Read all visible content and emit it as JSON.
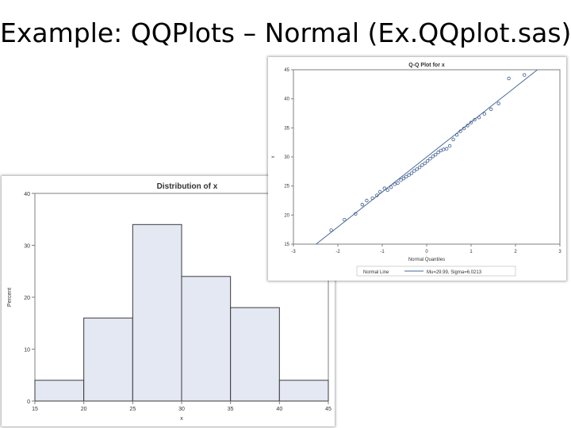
{
  "slide": {
    "title": "Example: QQPlots – Normal (Ex.QQplot.sas)"
  },
  "colors": {
    "bar_fill": "#e4e8f3",
    "bar_stroke": "#3a3a3a",
    "marker": "#3f5f8f",
    "ref_line": "#4a6a9a",
    "frame": "#7f7f7f"
  },
  "chart_data": [
    {
      "type": "bar",
      "chart": "histogram",
      "title": "Distribution of x",
      "xlabel": "x",
      "ylabel": "Percent",
      "bins": [
        [
          15,
          20
        ],
        [
          20,
          25
        ],
        [
          25,
          30
        ],
        [
          30,
          35
        ],
        [
          35,
          40
        ],
        [
          40,
          45
        ]
      ],
      "values": [
        4,
        16,
        34,
        24,
        18,
        4
      ],
      "xlim": [
        15,
        45
      ],
      "ylim": [
        0,
        40
      ],
      "xticks": [
        "15",
        "20",
        "25",
        "30",
        "35",
        "40",
        "45"
      ],
      "yticks": [
        "0",
        "10",
        "20",
        "30",
        "40"
      ],
      "grid": false
    },
    {
      "type": "scatter",
      "chart": "qqplot",
      "title": "Q-Q Plot for x",
      "xlabel": "Normal Quantiles",
      "ylabel": "x",
      "xlim": [
        -3,
        3
      ],
      "ylim": [
        15,
        45
      ],
      "xticks": [
        "-3",
        "-2",
        "-1",
        "0",
        "1",
        "2",
        "3"
      ],
      "yticks": [
        "15",
        "20",
        "25",
        "30",
        "35",
        "40",
        "45"
      ],
      "reference_line": {
        "mu": 29.99,
        "sigma": 6.0213
      },
      "legend": {
        "title": "Normal Line",
        "entry": "Mu=29.99, Sigma=6.0213",
        "position": "bottom"
      },
      "points": [
        [
          -2.15,
          17.4
        ],
        [
          -1.85,
          19.2
        ],
        [
          -1.6,
          20.2
        ],
        [
          -1.45,
          21.8
        ],
        [
          -1.35,
          22.5
        ],
        [
          -1.22,
          22.9
        ],
        [
          -1.12,
          23.4
        ],
        [
          -1.05,
          24.0
        ],
        [
          -0.95,
          24.6
        ],
        [
          -0.88,
          24.3
        ],
        [
          -0.8,
          24.8
        ],
        [
          -0.72,
          25.3
        ],
        [
          -0.65,
          25.5
        ],
        [
          -0.58,
          26.0
        ],
        [
          -0.52,
          26.3
        ],
        [
          -0.46,
          26.6
        ],
        [
          -0.4,
          26.9
        ],
        [
          -0.34,
          27.2
        ],
        [
          -0.28,
          27.6
        ],
        [
          -0.22,
          27.9
        ],
        [
          -0.16,
          28.2
        ],
        [
          -0.1,
          28.6
        ],
        [
          -0.04,
          28.9
        ],
        [
          0.02,
          29.3
        ],
        [
          0.08,
          29.7
        ],
        [
          0.14,
          30.1
        ],
        [
          0.2,
          30.4
        ],
        [
          0.26,
          30.8
        ],
        [
          0.32,
          31.1
        ],
        [
          0.38,
          31.3
        ],
        [
          0.45,
          31.4
        ],
        [
          0.52,
          31.9
        ],
        [
          0.6,
          33.0
        ],
        [
          0.68,
          33.8
        ],
        [
          0.76,
          34.4
        ],
        [
          0.84,
          34.9
        ],
        [
          0.92,
          35.4
        ],
        [
          1.0,
          35.9
        ],
        [
          1.08,
          36.4
        ],
        [
          1.18,
          36.8
        ],
        [
          1.3,
          37.4
        ],
        [
          1.45,
          38.2
        ],
        [
          1.62,
          39.2
        ],
        [
          1.85,
          43.5
        ],
        [
          2.2,
          44.1
        ]
      ]
    }
  ]
}
